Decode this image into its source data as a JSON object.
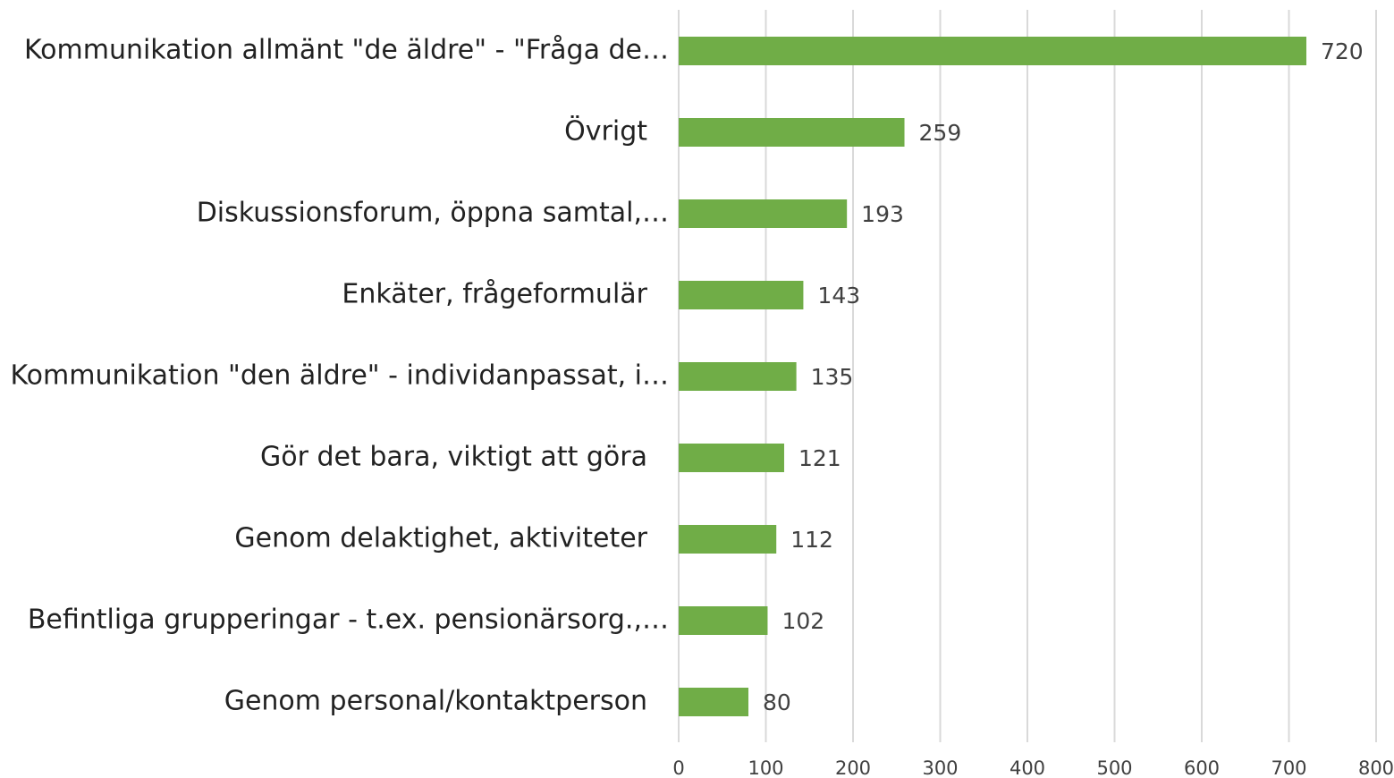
{
  "chart_data": {
    "type": "bar",
    "orientation": "horizontal",
    "categories": [
      "Kommunikation allmänt \"de äldre\" - \"Fråga de…",
      "Övrigt",
      "Diskussionsforum, öppna samtal,…",
      "Enkäter, frågeformulär",
      "Kommunikation \"den äldre\" - individanpassat, i…",
      "Gör det bara, viktigt att göra",
      "Genom delaktighet, aktiviteter",
      "Befintliga grupperingar - t.ex. pensionärsorg.,…",
      "Genom personal/kontaktperson"
    ],
    "values": [
      720,
      259,
      193,
      143,
      135,
      121,
      112,
      102,
      80
    ],
    "color": "#70ad47",
    "xlim": [
      0,
      800
    ],
    "xticks": [
      0,
      100,
      200,
      300,
      400,
      500,
      600,
      700,
      800
    ],
    "grid": true
  }
}
